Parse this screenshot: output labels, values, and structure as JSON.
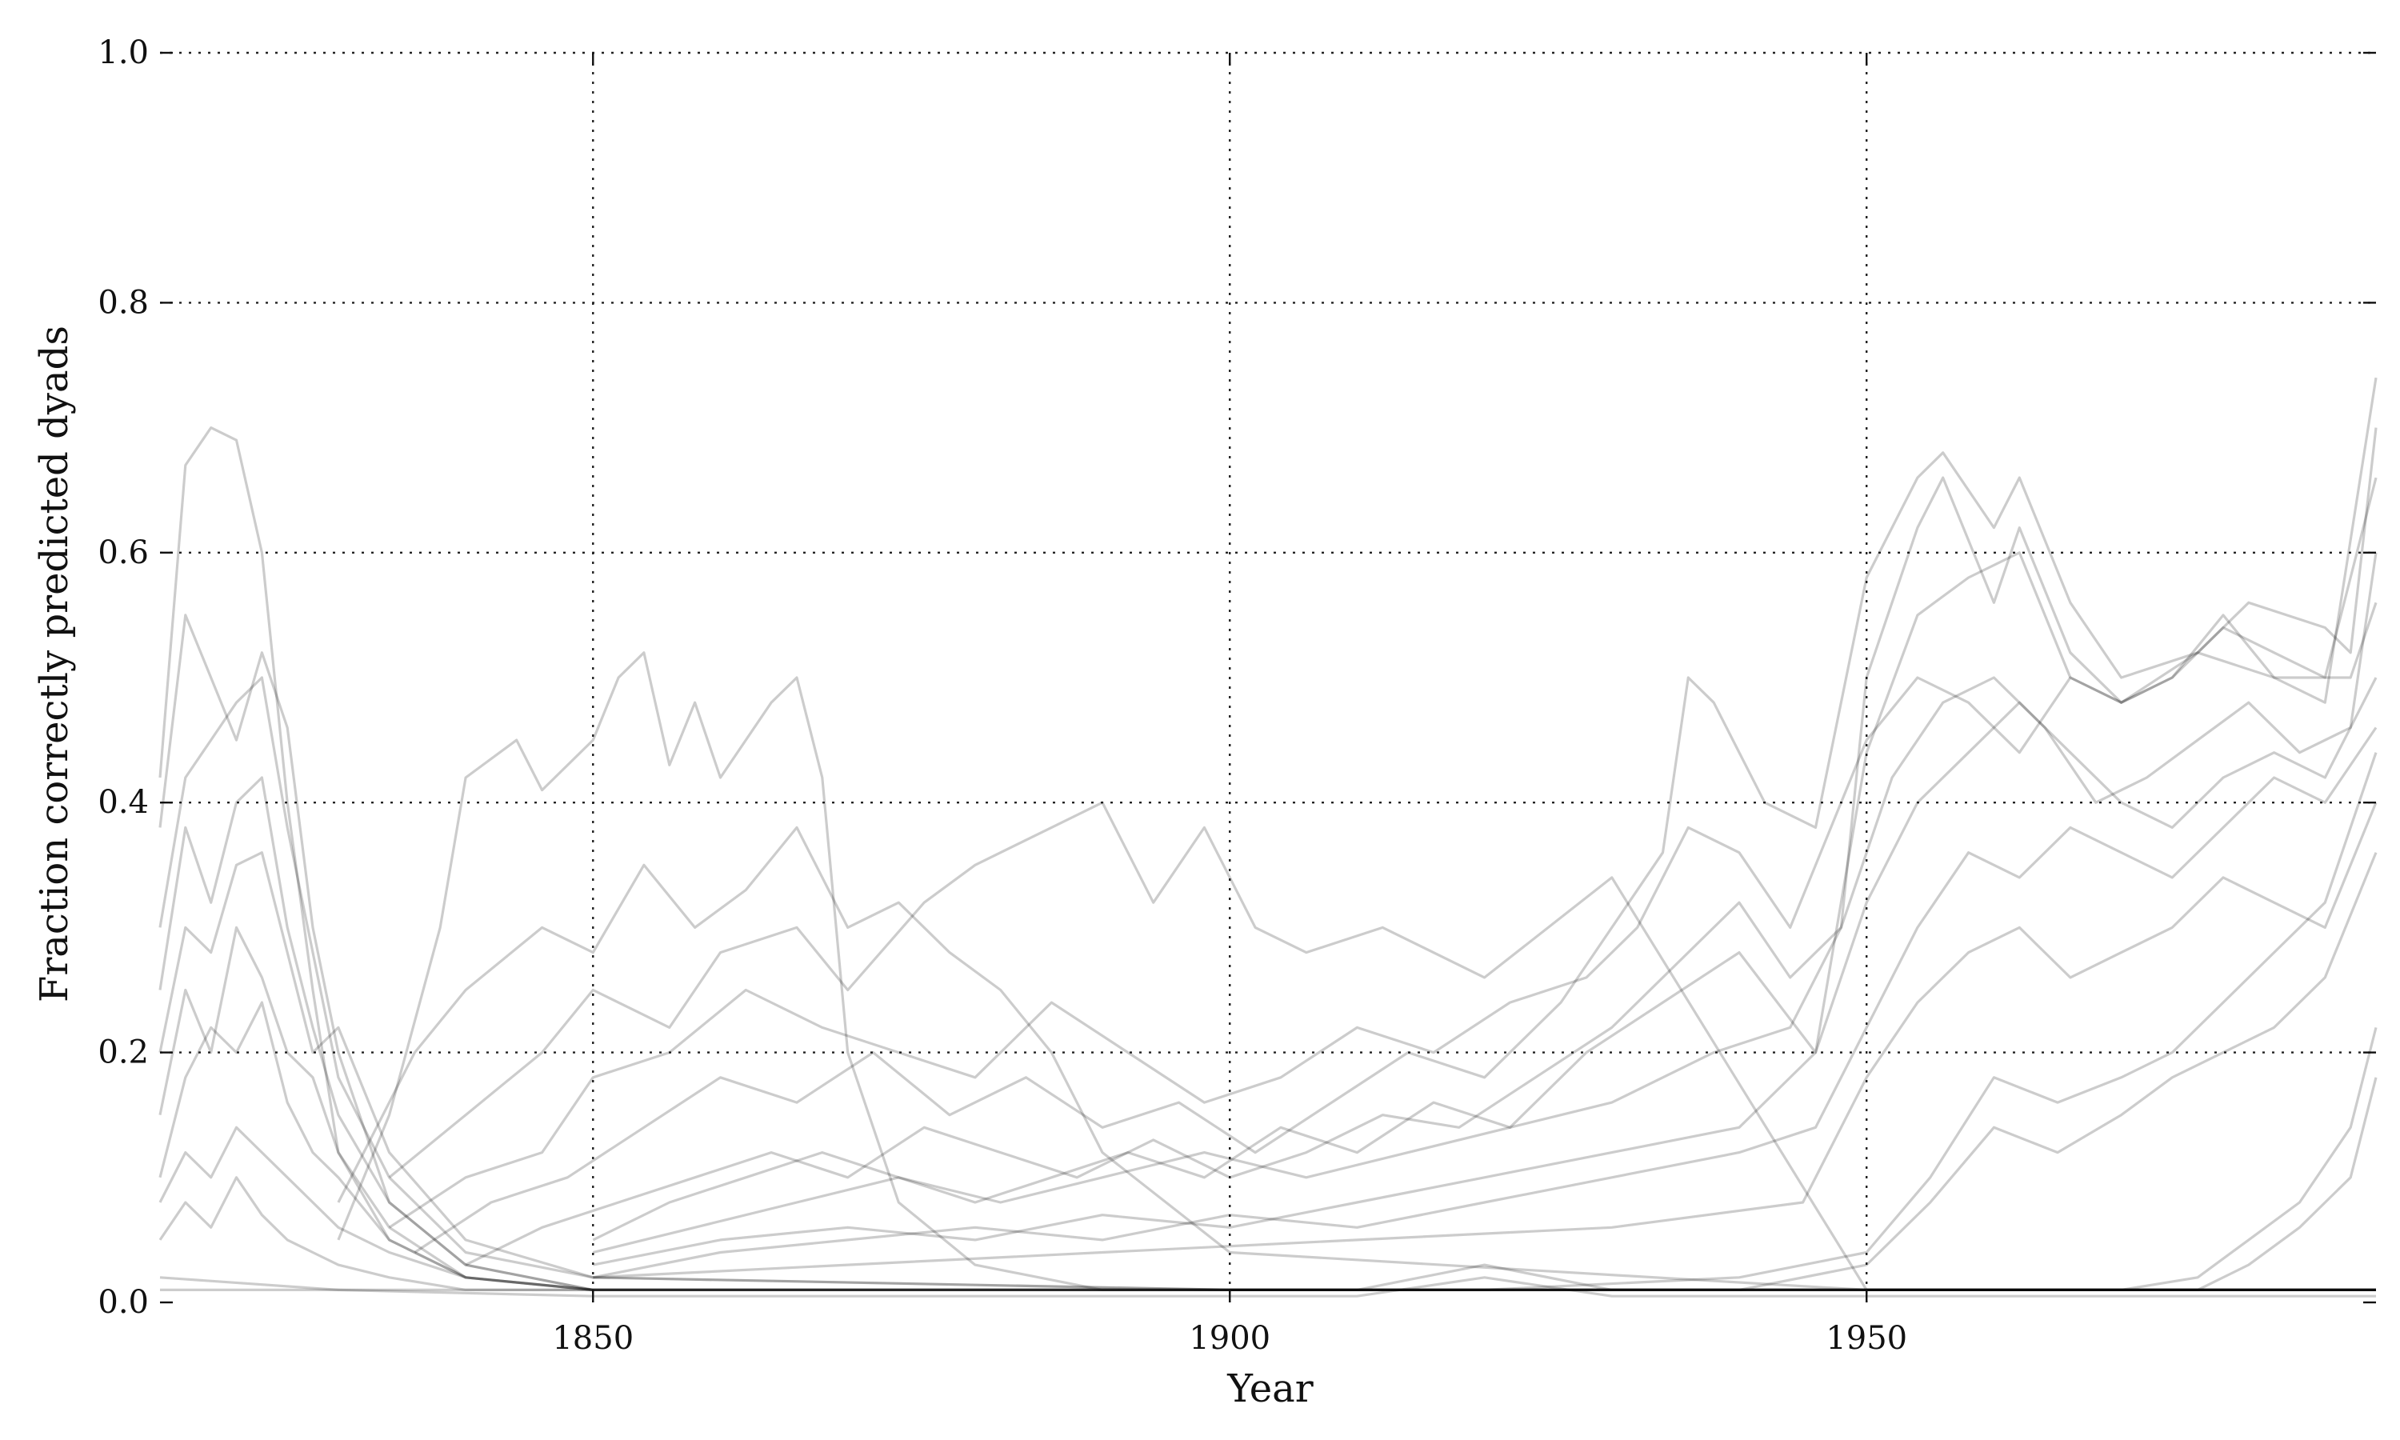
{
  "chart_data": {
    "type": "line",
    "title": "",
    "xlabel": "Year",
    "ylabel": "Fraction correctly predicted dyads",
    "xlim": [
      1816,
      1990
    ],
    "ylim": [
      0.0,
      1.0
    ],
    "xticks": [
      1850,
      1900,
      1950
    ],
    "yticks": [
      0.0,
      0.2,
      0.4,
      0.6,
      0.8,
      1.0
    ],
    "xtick_labels": [
      "1850",
      "1900",
      "1950"
    ],
    "ytick_labels": [
      "0.0",
      "0.2",
      "0.4",
      "0.6",
      "0.8",
      "1.0"
    ],
    "grid": true,
    "legend": "none",
    "line_color": "#000000",
    "line_opacity": 0.2,
    "series": [
      {
        "x": [
          1816,
          1818,
          1820,
          1822,
          1824,
          1826,
          1828,
          1830,
          1834,
          1840,
          1850,
          1860,
          1870,
          1880,
          1890,
          1900,
          1910,
          1920,
          1930,
          1940,
          1950,
          1960,
          1970,
          1980,
          1990
        ],
        "y": [
          0.42,
          0.67,
          0.7,
          0.69,
          0.6,
          0.4,
          0.25,
          0.12,
          0.05,
          0.02,
          0.01,
          0.01,
          0.01,
          0.01,
          0.01,
          0.01,
          0.01,
          0.01,
          0.01,
          0.01,
          0.01,
          0.01,
          0.01,
          0.01,
          0.01
        ]
      },
      {
        "x": [
          1816,
          1818,
          1820,
          1822,
          1824,
          1826,
          1828,
          1830,
          1834,
          1840,
          1850,
          1900,
          1950,
          1990
        ],
        "y": [
          0.38,
          0.55,
          0.5,
          0.45,
          0.52,
          0.46,
          0.3,
          0.2,
          0.08,
          0.03,
          0.01,
          0.01,
          0.01,
          0.01
        ]
      },
      {
        "x": [
          1816,
          1818,
          1820,
          1822,
          1824,
          1826,
          1828,
          1830,
          1834,
          1840,
          1850,
          1900,
          1950,
          1990
        ],
        "y": [
          0.3,
          0.42,
          0.45,
          0.48,
          0.5,
          0.38,
          0.28,
          0.18,
          0.1,
          0.04,
          0.02,
          0.01,
          0.01,
          0.01
        ]
      },
      {
        "x": [
          1816,
          1818,
          1820,
          1822,
          1824,
          1826,
          1828,
          1830,
          1834,
          1840,
          1850,
          1900,
          1950,
          1990
        ],
        "y": [
          0.25,
          0.38,
          0.32,
          0.4,
          0.42,
          0.3,
          0.22,
          0.15,
          0.08,
          0.03,
          0.01,
          0.01,
          0.01,
          0.01
        ]
      },
      {
        "x": [
          1816,
          1818,
          1820,
          1822,
          1824,
          1826,
          1828,
          1830,
          1834,
          1840,
          1850,
          1900,
          1950,
          1990
        ],
        "y": [
          0.2,
          0.3,
          0.28,
          0.35,
          0.36,
          0.28,
          0.2,
          0.22,
          0.12,
          0.05,
          0.02,
          0.01,
          0.01,
          0.01
        ]
      },
      {
        "x": [
          1816,
          1818,
          1820,
          1822,
          1824,
          1826,
          1828,
          1830,
          1834,
          1840,
          1850,
          1900,
          1950,
          1990
        ],
        "y": [
          0.15,
          0.25,
          0.2,
          0.3,
          0.26,
          0.2,
          0.18,
          0.12,
          0.06,
          0.02,
          0.01,
          0.01,
          0.01,
          0.01
        ]
      },
      {
        "x": [
          1816,
          1818,
          1820,
          1822,
          1824,
          1826,
          1828,
          1830,
          1834,
          1840,
          1850,
          1900,
          1950,
          1990
        ],
        "y": [
          0.1,
          0.18,
          0.22,
          0.2,
          0.24,
          0.16,
          0.12,
          0.1,
          0.05,
          0.02,
          0.01,
          0.01,
          0.01,
          0.01
        ]
      },
      {
        "x": [
          1816,
          1818,
          1820,
          1822,
          1824,
          1826,
          1828,
          1830,
          1834,
          1840,
          1850,
          1900,
          1950,
          1990
        ],
        "y": [
          0.08,
          0.12,
          0.1,
          0.14,
          0.12,
          0.1,
          0.08,
          0.06,
          0.04,
          0.02,
          0.01,
          0.01,
          0.01,
          0.01
        ]
      },
      {
        "x": [
          1816,
          1818,
          1820,
          1822,
          1824,
          1826,
          1828,
          1830,
          1834,
          1840,
          1850,
          1900,
          1950,
          1990
        ],
        "y": [
          0.05,
          0.08,
          0.06,
          0.1,
          0.07,
          0.05,
          0.04,
          0.03,
          0.02,
          0.01,
          0.01,
          0.01,
          0.01,
          0.01
        ]
      },
      {
        "x": [
          1830,
          1834,
          1838,
          1840,
          1844,
          1846,
          1850,
          1852,
          1854,
          1856,
          1858,
          1860,
          1864,
          1866,
          1868,
          1870,
          1874,
          1880,
          1890,
          1900,
          1950,
          1990
        ],
        "y": [
          0.05,
          0.15,
          0.3,
          0.42,
          0.45,
          0.41,
          0.45,
          0.5,
          0.52,
          0.43,
          0.48,
          0.42,
          0.48,
          0.5,
          0.42,
          0.2,
          0.08,
          0.03,
          0.01,
          0.01,
          0.01,
          0.01
        ]
      },
      {
        "x": [
          1830,
          1836,
          1840,
          1846,
          1850,
          1854,
          1858,
          1862,
          1866,
          1870,
          1874,
          1878,
          1882,
          1886,
          1890,
          1900,
          1950,
          1990
        ],
        "y": [
          0.08,
          0.2,
          0.25,
          0.3,
          0.28,
          0.35,
          0.3,
          0.33,
          0.38,
          0.3,
          0.32,
          0.28,
          0.25,
          0.2,
          0.12,
          0.04,
          0.01,
          0.01
        ]
      },
      {
        "x": [
          1834,
          1840,
          1846,
          1850,
          1856,
          1860,
          1866,
          1870,
          1876,
          1880,
          1886,
          1890,
          1894,
          1898,
          1902,
          1906,
          1912,
          1920,
          1930,
          1950,
          1990
        ],
        "y": [
          0.1,
          0.15,
          0.2,
          0.25,
          0.22,
          0.28,
          0.3,
          0.25,
          0.32,
          0.35,
          0.38,
          0.4,
          0.32,
          0.38,
          0.3,
          0.28,
          0.3,
          0.26,
          0.34,
          0.01,
          0.01
        ]
      },
      {
        "x": [
          1834,
          1840,
          1846,
          1850,
          1856,
          1862,
          1868,
          1874,
          1880,
          1886,
          1892,
          1898,
          1904,
          1910,
          1916,
          1922,
          1928,
          1932,
          1936,
          1940,
          1944,
          1950,
          1954,
          1958,
          1962,
          1966,
          1970,
          1976,
          1982,
          1988,
          1990
        ],
        "y": [
          0.06,
          0.1,
          0.12,
          0.18,
          0.2,
          0.25,
          0.22,
          0.2,
          0.18,
          0.24,
          0.2,
          0.16,
          0.18,
          0.22,
          0.2,
          0.24,
          0.26,
          0.3,
          0.38,
          0.36,
          0.3,
          0.45,
          0.5,
          0.48,
          0.44,
          0.5,
          0.48,
          0.52,
          0.5,
          0.5,
          0.56
        ]
      },
      {
        "x": [
          1836,
          1842,
          1848,
          1854,
          1860,
          1866,
          1872,
          1878,
          1884,
          1890,
          1896,
          1902,
          1908,
          1914,
          1920,
          1926,
          1930,
          1934,
          1936,
          1938,
          1942,
          1946,
          1950,
          1954,
          1956,
          1960,
          1962,
          1966,
          1970,
          1976,
          1980,
          1986,
          1988,
          1990
        ],
        "y": [
          0.04,
          0.08,
          0.1,
          0.14,
          0.18,
          0.16,
          0.2,
          0.15,
          0.18,
          0.14,
          0.16,
          0.12,
          0.16,
          0.2,
          0.18,
          0.24,
          0.3,
          0.36,
          0.5,
          0.48,
          0.4,
          0.38,
          0.58,
          0.66,
          0.68,
          0.62,
          0.66,
          0.56,
          0.5,
          0.52,
          0.56,
          0.54,
          0.52,
          0.7
        ]
      },
      {
        "x": [
          1840,
          1846,
          1852,
          1858,
          1864,
          1870,
          1876,
          1882,
          1888,
          1894,
          1900,
          1906,
          1912,
          1918,
          1924,
          1930,
          1936,
          1940,
          1944,
          1948,
          1950,
          1954,
          1956,
          1960,
          1962,
          1966,
          1970,
          1974,
          1978,
          1982,
          1986,
          1990
        ],
        "y": [
          0.03,
          0.06,
          0.08,
          0.1,
          0.12,
          0.1,
          0.14,
          0.12,
          0.1,
          0.13,
          0.1,
          0.12,
          0.15,
          0.14,
          0.18,
          0.22,
          0.28,
          0.32,
          0.26,
          0.3,
          0.5,
          0.62,
          0.66,
          0.56,
          0.62,
          0.52,
          0.48,
          0.5,
          0.54,
          0.52,
          0.5,
          0.66
        ]
      },
      {
        "x": [
          1850,
          1856,
          1862,
          1868,
          1874,
          1880,
          1886,
          1892,
          1898,
          1904,
          1910,
          1916,
          1922,
          1928,
          1934,
          1940,
          1946,
          1950,
          1954,
          1958,
          1962,
          1966,
          1970,
          1974,
          1978,
          1982,
          1986,
          1990
        ],
        "y": [
          0.05,
          0.08,
          0.1,
          0.12,
          0.1,
          0.08,
          0.1,
          0.12,
          0.1,
          0.14,
          0.12,
          0.16,
          0.14,
          0.2,
          0.24,
          0.28,
          0.2,
          0.44,
          0.55,
          0.58,
          0.6,
          0.5,
          0.48,
          0.5,
          0.55,
          0.5,
          0.48,
          0.74
        ]
      },
      {
        "x": [
          1850,
          1858,
          1866,
          1874,
          1882,
          1890,
          1898,
          1906,
          1914,
          1922,
          1930,
          1938,
          1944,
          1948,
          1952,
          1956,
          1960,
          1964,
          1968,
          1972,
          1976,
          1980,
          1984,
          1988,
          1990
        ],
        "y": [
          0.04,
          0.06,
          0.08,
          0.1,
          0.08,
          0.1,
          0.12,
          0.1,
          0.12,
          0.14,
          0.16,
          0.2,
          0.22,
          0.3,
          0.42,
          0.48,
          0.5,
          0.46,
          0.4,
          0.42,
          0.45,
          0.48,
          0.44,
          0.46,
          0.6
        ]
      },
      {
        "x": [
          1850,
          1860,
          1870,
          1880,
          1890,
          1900,
          1910,
          1920,
          1930,
          1940,
          1946,
          1950,
          1954,
          1958,
          1962,
          1966,
          1970,
          1974,
          1978,
          1982,
          1986,
          1990
        ],
        "y": [
          0.03,
          0.05,
          0.06,
          0.05,
          0.07,
          0.06,
          0.08,
          0.1,
          0.12,
          0.14,
          0.2,
          0.32,
          0.4,
          0.44,
          0.48,
          0.44,
          0.4,
          0.38,
          0.42,
          0.44,
          0.42,
          0.5
        ]
      },
      {
        "x": [
          1850,
          1860,
          1870,
          1880,
          1890,
          1900,
          1910,
          1920,
          1930,
          1940,
          1946,
          1950,
          1954,
          1958,
          1962,
          1966,
          1970,
          1974,
          1978,
          1982,
          1986,
          1990
        ],
        "y": [
          0.02,
          0.04,
          0.05,
          0.06,
          0.05,
          0.07,
          0.06,
          0.08,
          0.1,
          0.12,
          0.14,
          0.22,
          0.3,
          0.36,
          0.34,
          0.38,
          0.36,
          0.34,
          0.38,
          0.42,
          0.4,
          0.46
        ]
      },
      {
        "x": [
          1850,
          1870,
          1890,
          1910,
          1930,
          1945,
          1950,
          1954,
          1958,
          1962,
          1966,
          1970,
          1974,
          1978,
          1982,
          1986,
          1990
        ],
        "y": [
          0.02,
          0.03,
          0.04,
          0.05,
          0.06,
          0.08,
          0.18,
          0.24,
          0.28,
          0.3,
          0.26,
          0.28,
          0.3,
          0.34,
          0.32,
          0.3,
          0.4
        ]
      },
      {
        "x": [
          1900,
          1920,
          1940,
          1950,
          1955,
          1960,
          1965,
          1970,
          1974,
          1978,
          1982,
          1986,
          1990
        ],
        "y": [
          0.01,
          0.01,
          0.02,
          0.04,
          0.1,
          0.18,
          0.16,
          0.18,
          0.2,
          0.24,
          0.28,
          0.32,
          0.44
        ]
      },
      {
        "x": [
          1900,
          1920,
          1940,
          1950,
          1955,
          1960,
          1965,
          1970,
          1974,
          1978,
          1982,
          1986,
          1990
        ],
        "y": [
          0.01,
          0.01,
          0.01,
          0.03,
          0.08,
          0.14,
          0.12,
          0.15,
          0.18,
          0.2,
          0.22,
          0.26,
          0.36
        ]
      },
      {
        "x": [
          1950,
          1960,
          1970,
          1976,
          1980,
          1984,
          1988,
          1990
        ],
        "y": [
          0.01,
          0.01,
          0.01,
          0.02,
          0.05,
          0.08,
          0.14,
          0.22
        ]
      },
      {
        "x": [
          1950,
          1960,
          1970,
          1976,
          1980,
          1984,
          1988,
          1990
        ],
        "y": [
          0.01,
          0.01,
          0.01,
          0.01,
          0.03,
          0.06,
          0.1,
          0.18
        ]
      },
      {
        "x": [
          1816,
          1830,
          1850,
          1870,
          1890,
          1910,
          1920,
          1930,
          1950,
          1970,
          1990
        ],
        "y": [
          0.02,
          0.01,
          0.01,
          0.01,
          0.01,
          0.01,
          0.03,
          0.01,
          0.01,
          0.01,
          0.01
        ]
      },
      {
        "x": [
          1816,
          1830,
          1850,
          1870,
          1890,
          1910,
          1920,
          1930,
          1950,
          1970,
          1990
        ],
        "y": [
          0.01,
          0.01,
          0.005,
          0.005,
          0.005,
          0.005,
          0.02,
          0.005,
          0.005,
          0.005,
          0.005
        ]
      }
    ]
  }
}
